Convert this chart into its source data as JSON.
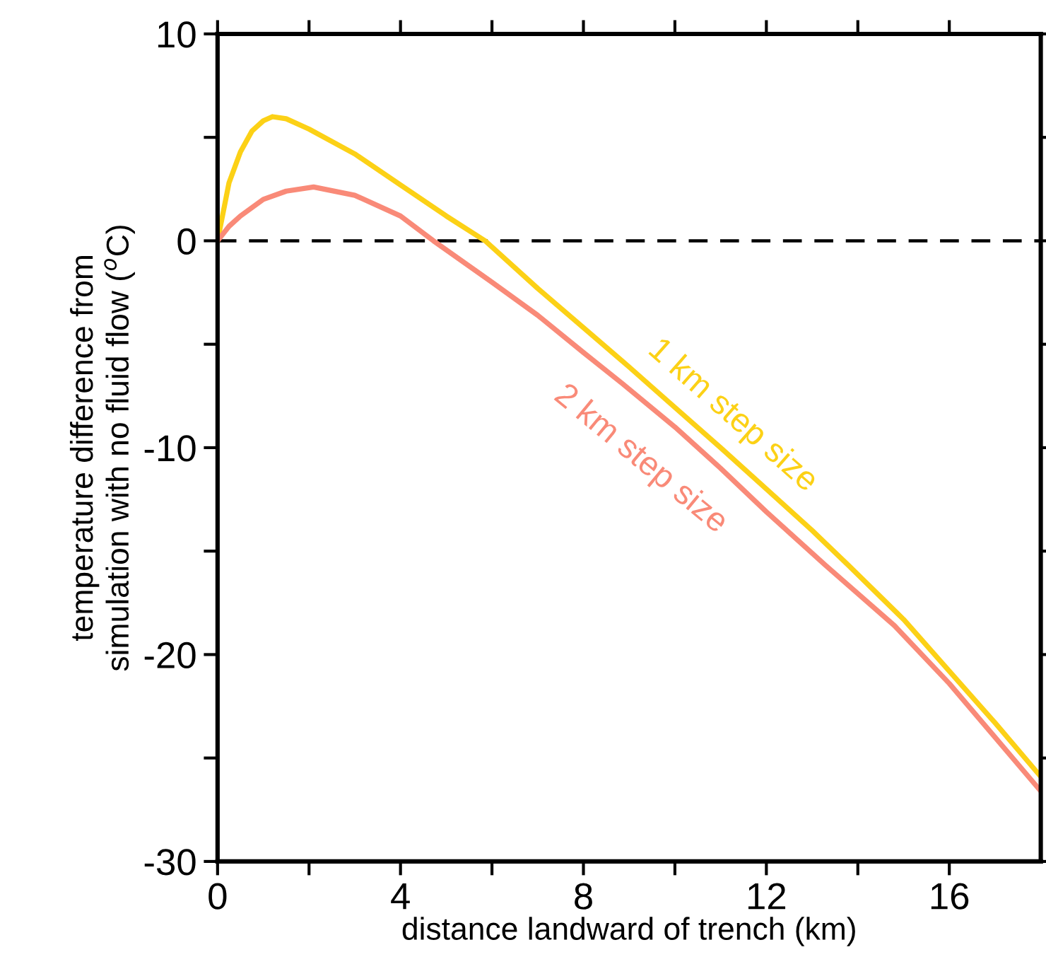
{
  "chart_data": {
    "type": "line",
    "xlabel": "distance landward of trench (km)",
    "ylabel": "temperature difference from\nsimulation with no fluid flow ($^{o}$C)",
    "series": [
      {
        "name": "1 km step size",
        "color": "#fcd116",
        "x": [
          0,
          0.25,
          0.5,
          0.75,
          1,
          1.2,
          1.5,
          2,
          3,
          4,
          5,
          5.85,
          7,
          8,
          9,
          9.87,
          11,
          12,
          13,
          13.8,
          15,
          16,
          17,
          18
        ],
        "values": [
          0,
          2.8,
          4.3,
          5.3,
          5.8,
          6.0,
          5.9,
          5.4,
          4.2,
          2.7,
          1.2,
          0,
          -2.3,
          -4.2,
          -6.1,
          -7.8,
          -10.0,
          -12.0,
          -14.0,
          -15.7,
          -18.3,
          -20.8,
          -23.3,
          -25.9
        ]
      },
      {
        "name": "2 km step size",
        "color": "#f98a78",
        "x": [
          0,
          0.25,
          0.5,
          1,
          1.5,
          2.1,
          3,
          4,
          4.72,
          6,
          7,
          8,
          8.85,
          10,
          11,
          12,
          13.3,
          14.8,
          16,
          17,
          18
        ],
        "values": [
          0,
          0.7,
          1.2,
          2.0,
          2.4,
          2.6,
          2.2,
          1.2,
          0,
          -2.0,
          -3.6,
          -5.4,
          -6.9,
          -9.0,
          -11.0,
          -13.1,
          -15.7,
          -18.6,
          -21.4,
          -24.0,
          -26.6
        ]
      }
    ],
    "ref_lines": [
      {
        "axis": "y",
        "value": 0,
        "color": "#000000",
        "line_style": "dashed"
      }
    ],
    "xlim": [
      0,
      18
    ],
    "xticks": [
      0,
      {
        "value": 2,
        "label": null
      },
      4,
      {
        "value": 6,
        "label": null
      },
      8,
      {
        "value": 10,
        "label": null
      },
      12,
      {
        "value": 14,
        "label": null
      },
      16
    ],
    "ylim": [
      -30,
      10
    ],
    "yticks": [
      -30,
      {
        "value": -25,
        "label": null
      },
      -20,
      {
        "value": -15,
        "label": null
      },
      -10,
      {
        "value": -5,
        "label": null
      },
      0,
      {
        "value": 5,
        "label": null
      },
      10
    ],
    "grid": false,
    "legend": false,
    "marker": "none",
    "line_style": "solid"
  }
}
